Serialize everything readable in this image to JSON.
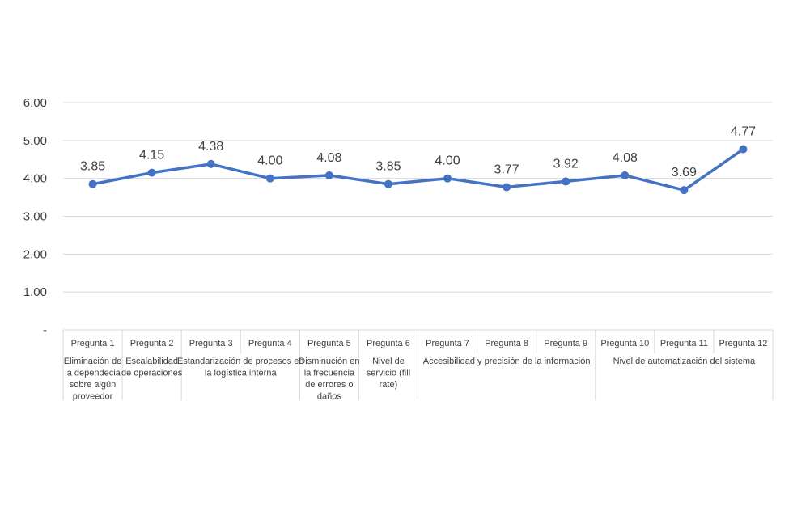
{
  "chart_data": {
    "type": "line",
    "categories": [
      "Pregunta 1",
      "Pregunta 2",
      "Pregunta 3",
      "Pregunta 4",
      "Pregunta 5",
      "Pregunta 6",
      "Pregunta 7",
      "Pregunta 8",
      "Pregunta 9",
      "Pregunta 10",
      "Pregunta 11",
      "Pregunta 12"
    ],
    "groups": [
      {
        "lines": [
          "Eliminación de",
          "la dependecia",
          "sobre algún",
          "proveedor"
        ],
        "start": 0,
        "end": 0
      },
      {
        "lines": [
          "Escalabilidad",
          "de operaciones"
        ],
        "start": 1,
        "end": 1
      },
      {
        "lines": [
          "Estandarización de procesos en",
          "la  logística interna"
        ],
        "start": 2,
        "end": 3
      },
      {
        "lines": [
          "Disminución en",
          "la frecuencia",
          "de errores o",
          "daños"
        ],
        "start": 4,
        "end": 4
      },
      {
        "lines": [
          "Nivel de",
          "servicio (fill",
          "rate)"
        ],
        "start": 5,
        "end": 5
      },
      {
        "lines": [
          "Accesibilidad y precisión de la información"
        ],
        "start": 6,
        "end": 8
      },
      {
        "lines": [
          "Nivel de automatización del sistema"
        ],
        "start": 9,
        "end": 11
      }
    ],
    "series": [
      {
        "values": [
          3.85,
          4.15,
          4.38,
          4.0,
          4.08,
          3.85,
          4.0,
          3.77,
          3.92,
          4.08,
          3.69,
          4.77
        ]
      }
    ],
    "data_labels": [
      "3.85",
      "4.15",
      "4.38",
      "4.00",
      "4.08",
      "3.85",
      "4.00",
      "3.77",
      "3.92",
      "4.08",
      "3.69",
      "4.77"
    ],
    "y_ticks": [
      0,
      1,
      2,
      3,
      4,
      5,
      6
    ],
    "y_tick_labels": [
      "-",
      "1.00",
      "2.00",
      "3.00",
      "4.00",
      "5.00",
      "6.00"
    ],
    "ylim": [
      0,
      6
    ],
    "grid": true,
    "legend": "none",
    "color": "#4472c4"
  }
}
